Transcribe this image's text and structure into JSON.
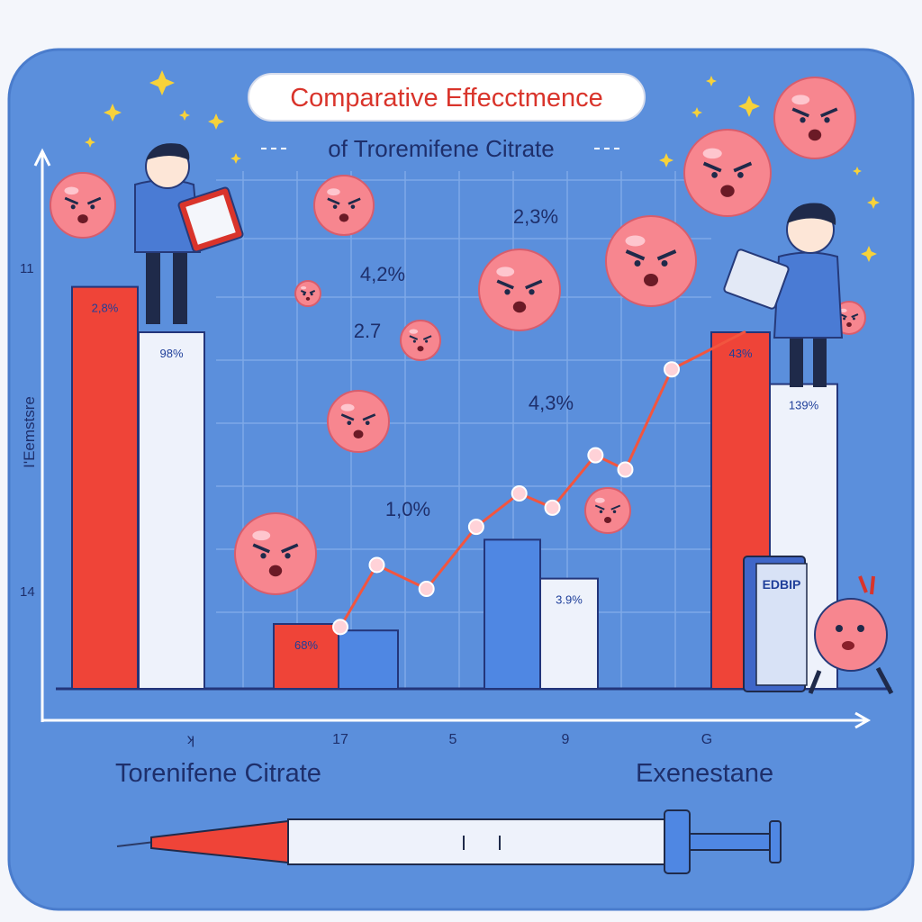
{
  "colors": {
    "background": "#5b8fdc",
    "panel_border": "#4a7ccc",
    "grid": "#7ea9e8",
    "red_bar": "#ef4438",
    "white_bar": "#eef2fb",
    "blue_bar": "#4f87e3",
    "line": "#f2553f",
    "marker": "#ffd2d8",
    "pill_red": "#d9342b",
    "axis": "#ffffff",
    "label_dark": "#1f3f9a",
    "face": "#f7868f"
  },
  "title": {
    "line1": "Comparative Effecctmence",
    "line2": "of Troremifene Citrate"
  },
  "chart_data": {
    "type": "bar",
    "title": "Comparative Effecctmence of Troremifene Citrate",
    "ylabel": "I'Eemstsre",
    "y_tick_labels": [
      "11",
      "14"
    ],
    "x_tick_labels": [
      "ʞ",
      "17",
      "5",
      "9",
      "G"
    ],
    "group_labels": [
      "Torenifene Citrate",
      "Exenestane"
    ],
    "bars": [
      {
        "series": "red",
        "group": 1,
        "value": 0.62,
        "label": "2,8%"
      },
      {
        "series": "white",
        "group": 1,
        "value": 0.55,
        "label": "98%"
      },
      {
        "series": "red",
        "group": 2,
        "value": 0.1,
        "label": "68%"
      },
      {
        "series": "blue",
        "group": 2,
        "value": 0.09,
        "label": ""
      },
      {
        "series": "blue",
        "group": 3,
        "value": 0.23,
        "label": ""
      },
      {
        "series": "white",
        "group": 3,
        "value": 0.17,
        "label": "3.9%"
      },
      {
        "series": "red",
        "group": 5,
        "value": 0.55,
        "label": "43%"
      },
      {
        "series": "white",
        "group": 5,
        "value": 0.47,
        "label": "139%"
      }
    ],
    "line_series": {
      "name": "",
      "x": [
        0.0,
        0.11,
        0.26,
        0.41,
        0.54,
        0.64,
        0.77,
        0.86,
        1.0
      ],
      "y": [
        0.12,
        0.25,
        0.2,
        0.33,
        0.4,
        0.37,
        0.48,
        0.45,
        0.66
      ]
    },
    "annotations": [
      "2,3%",
      "4,2%",
      "2.7",
      "4,3%",
      "1,0%"
    ],
    "grid": true
  },
  "book_label": "EDBIP"
}
